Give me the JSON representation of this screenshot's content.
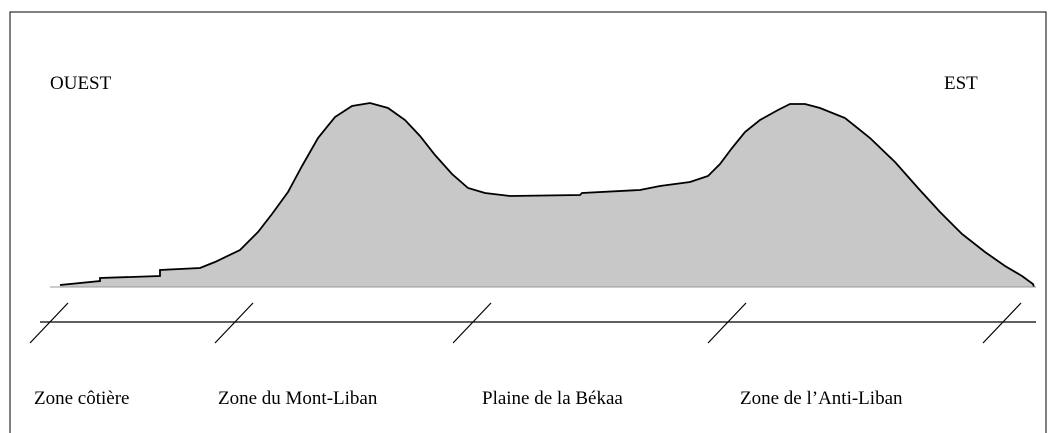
{
  "directions": {
    "west": "OUEST",
    "east": "EST"
  },
  "zones": [
    "Zone côtière",
    "Zone du Mont-Liban",
    "Plaine de la Békaa",
    "Zone de l’Anti-Liban"
  ]
}
